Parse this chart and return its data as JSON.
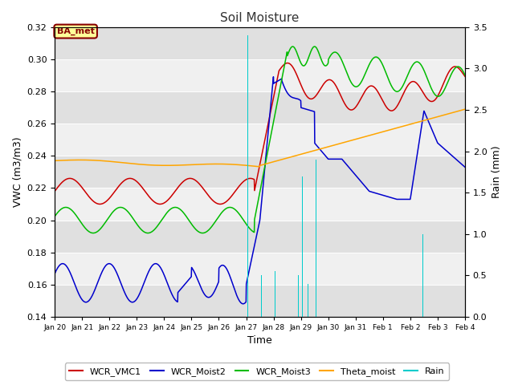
{
  "title": "Soil Moisture",
  "ylabel_left": "VWC (m3/m3)",
  "ylabel_right": "Rain (mm)",
  "xlabel": "Time",
  "ylim_left": [
    0.14,
    0.32
  ],
  "ylim_right": [
    0.0,
    3.5
  ],
  "yticks_left": [
    0.14,
    0.16,
    0.18,
    0.2,
    0.22,
    0.24,
    0.26,
    0.28,
    0.3,
    0.32
  ],
  "yticks_right": [
    0.0,
    0.5,
    1.0,
    1.5,
    2.0,
    2.5,
    3.0,
    3.5
  ],
  "fig_bg": "#ffffff",
  "plot_bg_light": "#f0f0f0",
  "plot_bg_dark": "#e0e0e0",
  "line_colors": {
    "WCR_VMC1": "#cc0000",
    "WCR_Moist2": "#0000cc",
    "WCR_Moist3": "#00bb00",
    "Theta_moist": "#ffa500",
    "Rain": "#00cccc"
  },
  "box_label": "BA_met",
  "box_color": "#880000",
  "box_bg": "#ffff99",
  "xtick_labels": [
    "Jan 20",
    "Jan 21",
    "Jan 22",
    "Jan 23",
    "Jan 24",
    "Jan 25",
    "Jan 26",
    "Jan 27",
    "Jan 28",
    "Jan 29",
    "Jan 30",
    "Jan 31",
    "Feb 1",
    "Feb 2",
    "Feb 3",
    "Feb 4"
  ],
  "legend_items": [
    "WCR_VMC1",
    "WCR_Moist2",
    "WCR_Moist3",
    "Theta_moist",
    "Rain"
  ],
  "legend_colors": [
    "#cc0000",
    "#0000cc",
    "#00bb00",
    "#ffa500",
    "#00cccc"
  ]
}
